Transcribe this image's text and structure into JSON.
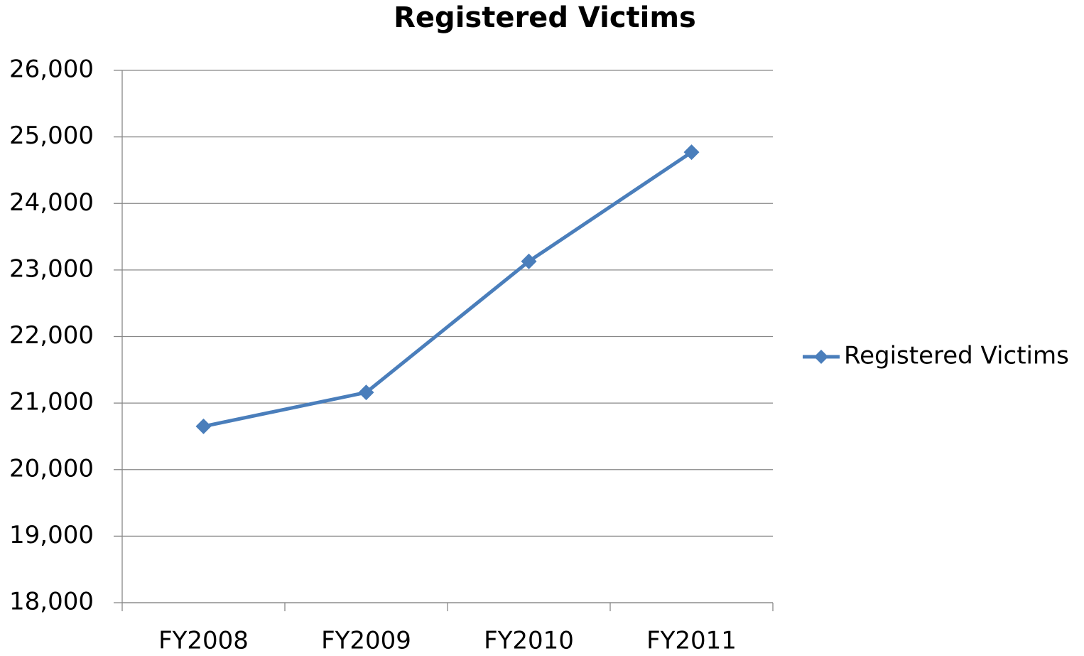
{
  "chart_data": {
    "type": "line",
    "title": "Registered Victims",
    "categories": [
      "FY2008",
      "FY2009",
      "FY2010",
      "FY2011"
    ],
    "series": [
      {
        "name": "Registered Victims",
        "color": "#4a7ebb",
        "values": [
          20650,
          21160,
          23130,
          24770
        ]
      }
    ],
    "ylim": [
      18000,
      26000
    ],
    "yticks": [
      {
        "value": 18000,
        "label": "18,000"
      },
      {
        "value": 19000,
        "label": "19,000"
      },
      {
        "value": 20000,
        "label": "20,000"
      },
      {
        "value": 21000,
        "label": "21,000"
      },
      {
        "value": 22000,
        "label": "22,000"
      },
      {
        "value": 23000,
        "label": "23,000"
      },
      {
        "value": 24000,
        "label": "24,000"
      },
      {
        "value": 25000,
        "label": "25,000"
      },
      {
        "value": 26000,
        "label": "26,000"
      }
    ],
    "grid": true,
    "legend": "right"
  }
}
